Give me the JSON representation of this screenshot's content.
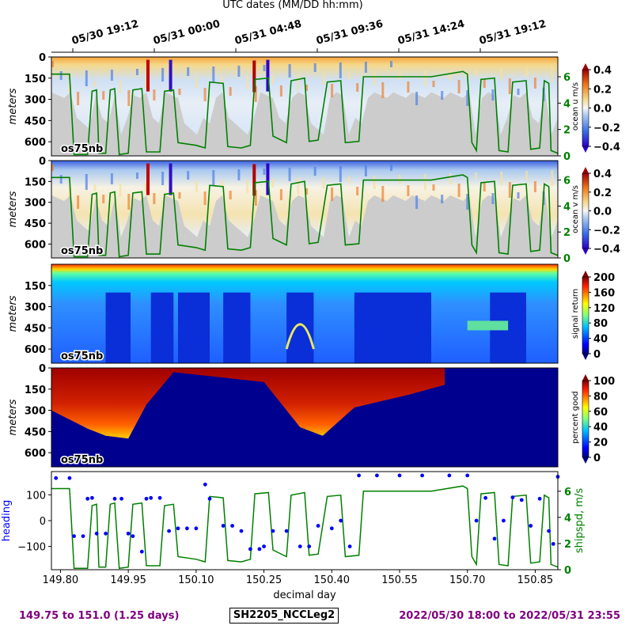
{
  "chart_data": [
    {
      "type": "heatmap",
      "panel": "u",
      "ylabel": "meters",
      "yticks": [
        "0",
        "150",
        "300",
        "450",
        "600"
      ],
      "ylim": [
        700,
        0
      ],
      "tag": "os75nb",
      "colorbar": {
        "label": "ocean u m/s",
        "ticks": [
          "0.4",
          "0.2",
          "0.0",
          "−0.2",
          "−0.4"
        ],
        "range": [
          -0.4,
          0.4
        ],
        "colormap": "blue-white-red"
      },
      "right_axis": {
        "ticks": [
          "0",
          "2",
          "4",
          "6"
        ],
        "color": "#008000"
      },
      "top_axis": {
        "title": "UTC dates (MM/DD hh:mm)",
        "ticks": [
          "05/30 19:12",
          "05/31 00:00",
          "05/31 04:48",
          "05/31 09:36",
          "05/31 14:24",
          "05/31 19:12"
        ]
      }
    },
    {
      "type": "heatmap",
      "panel": "v",
      "ylabel": "meters",
      "yticks": [
        "0",
        "150",
        "300",
        "450",
        "600"
      ],
      "ylim": [
        700,
        0
      ],
      "tag": "os75nb",
      "colorbar": {
        "label": "ocean v m/s",
        "ticks": [
          "0.4",
          "0.2",
          "0.0",
          "−0.2",
          "−0.4"
        ],
        "range": [
          -0.4,
          0.4
        ],
        "colormap": "blue-white-red"
      },
      "right_axis": {
        "ticks": [
          "0",
          "2",
          "4",
          "6"
        ],
        "color": "#008000"
      }
    },
    {
      "type": "heatmap",
      "panel": "amp",
      "ylabel": "meters",
      "yticks": [
        "150",
        "300",
        "450",
        "600"
      ],
      "ylim": [
        700,
        0
      ],
      "tag": "os75nb",
      "colorbar": {
        "label": "signal return",
        "ticks": [
          "200",
          "160",
          "120",
          "80",
          "40",
          "0"
        ],
        "range": [
          0,
          200
        ],
        "colormap": "jet"
      }
    },
    {
      "type": "heatmap",
      "panel": "pg",
      "ylabel": "meters",
      "yticks": [
        "0",
        "150",
        "300",
        "450",
        "600"
      ],
      "ylim": [
        700,
        0
      ],
      "tag": "os75nb",
      "colorbar": {
        "label": "percent good",
        "ticks": [
          "100",
          "80",
          "60",
          "40",
          "20",
          "0"
        ],
        "range": [
          0,
          100
        ],
        "colormap": "jet"
      }
    },
    {
      "type": "scatter",
      "panel": "heading",
      "xlabel": "decimal day",
      "ylabel": "heading",
      "y2label": "shipspd, m/s",
      "xticks": [
        "149.80",
        "149.95",
        "150.10",
        "150.25",
        "150.40",
        "150.55",
        "150.70",
        "150.85"
      ],
      "xlim": [
        149.78,
        150.9
      ],
      "yticks": [
        "100",
        "0",
        "−100"
      ],
      "ylim": [
        -190,
        190
      ],
      "y2ticks": [
        "0",
        "2",
        "4",
        "6"
      ],
      "y2lim": [
        0,
        7.5
      ],
      "series": [
        {
          "color": "#0000ff",
          "type": "scatter",
          "points": [
            [
              149.79,
              165
            ],
            [
              149.82,
              165
            ],
            [
              149.83,
              -60
            ],
            [
              149.85,
              -60
            ],
            [
              149.86,
              85
            ],
            [
              149.87,
              88
            ],
            [
              149.88,
              -50
            ],
            [
              149.9,
              -50
            ],
            [
              149.92,
              85
            ],
            [
              149.935,
              85
            ],
            [
              149.95,
              -50
            ],
            [
              149.96,
              -60
            ],
            [
              149.98,
              -120
            ],
            [
              149.99,
              85
            ],
            [
              150.0,
              88
            ],
            [
              150.02,
              88
            ],
            [
              150.04,
              -40
            ],
            [
              150.06,
              -30
            ],
            [
              150.08,
              -30
            ],
            [
              150.1,
              -30
            ],
            [
              150.12,
              140
            ],
            [
              150.13,
              85
            ],
            [
              150.16,
              -20
            ],
            [
              150.18,
              -20
            ],
            [
              150.2,
              -40
            ],
            [
              150.22,
              -110
            ],
            [
              150.24,
              -110
            ],
            [
              150.25,
              -100
            ],
            [
              150.27,
              -40
            ],
            [
              150.3,
              -40
            ],
            [
              150.33,
              -100
            ],
            [
              150.35,
              -100
            ],
            [
              150.37,
              -20
            ],
            [
              150.4,
              -30
            ],
            [
              150.42,
              0
            ],
            [
              150.44,
              -100
            ],
            [
              150.46,
              175
            ],
            [
              150.5,
              175
            ],
            [
              150.55,
              175
            ],
            [
              150.6,
              175
            ],
            [
              150.66,
              175
            ],
            [
              150.7,
              175
            ],
            [
              150.72,
              0
            ],
            [
              150.74,
              88
            ],
            [
              150.76,
              -70
            ],
            [
              150.78,
              0
            ],
            [
              150.8,
              90
            ],
            [
              150.82,
              80
            ],
            [
              150.84,
              -20
            ],
            [
              150.86,
              85
            ],
            [
              150.88,
              -40
            ],
            [
              150.89,
              -90
            ],
            [
              150.9,
              170
            ]
          ]
        },
        {
          "color": "#008000",
          "type": "line",
          "name": "shipspd",
          "points": [
            [
              149.78,
              6.2
            ],
            [
              149.82,
              6.2
            ],
            [
              149.83,
              0.1
            ],
            [
              149.86,
              0.1
            ],
            [
              149.87,
              4.9
            ],
            [
              149.88,
              5.0
            ],
            [
              149.885,
              0.2
            ],
            [
              149.9,
              0.2
            ],
            [
              149.91,
              5.0
            ],
            [
              149.92,
              5.1
            ],
            [
              149.93,
              0.1
            ],
            [
              149.95,
              0.2
            ],
            [
              149.96,
              5.0
            ],
            [
              149.98,
              5.1
            ],
            [
              149.99,
              0.3
            ],
            [
              150.02,
              0.3
            ],
            [
              150.03,
              4.9
            ],
            [
              150.05,
              5.0
            ],
            [
              150.06,
              1.0
            ],
            [
              150.1,
              0.8
            ],
            [
              150.12,
              0.6
            ],
            [
              150.13,
              5.6
            ],
            [
              150.16,
              5.5
            ],
            [
              150.17,
              0.7
            ],
            [
              150.2,
              0.6
            ],
            [
              150.22,
              0.8
            ],
            [
              150.23,
              5.8
            ],
            [
              150.26,
              5.9
            ],
            [
              150.27,
              1.5
            ],
            [
              150.3,
              1.0
            ],
            [
              150.31,
              5.7
            ],
            [
              150.34,
              5.9
            ],
            [
              150.35,
              1.1
            ],
            [
              150.37,
              1.2
            ],
            [
              150.39,
              5.6
            ],
            [
              150.42,
              5.7
            ],
            [
              150.43,
              1.0
            ],
            [
              150.46,
              1.1
            ],
            [
              150.47,
              6.0
            ],
            [
              150.55,
              6.0
            ],
            [
              150.62,
              6.0
            ],
            [
              150.69,
              6.4
            ],
            [
              150.7,
              6.2
            ],
            [
              150.71,
              1.0
            ],
            [
              150.72,
              0.4
            ],
            [
              150.73,
              5.8
            ],
            [
              150.76,
              5.9
            ],
            [
              150.77,
              0.4
            ],
            [
              150.79,
              0.3
            ],
            [
              150.8,
              5.6
            ],
            [
              150.83,
              5.7
            ],
            [
              150.84,
              0.5
            ],
            [
              150.86,
              0.6
            ],
            [
              150.87,
              5.7
            ],
            [
              150.88,
              5.5
            ],
            [
              150.885,
              0.4
            ],
            [
              150.9,
              0.2
            ]
          ]
        }
      ]
    }
  ],
  "footer": {
    "left": "149.75 to 151.0 (1.25 days)",
    "middle": "SH2205_NCCLeg2",
    "right": "2022/05/30 18:00 to 2022/05/31 23:55"
  }
}
